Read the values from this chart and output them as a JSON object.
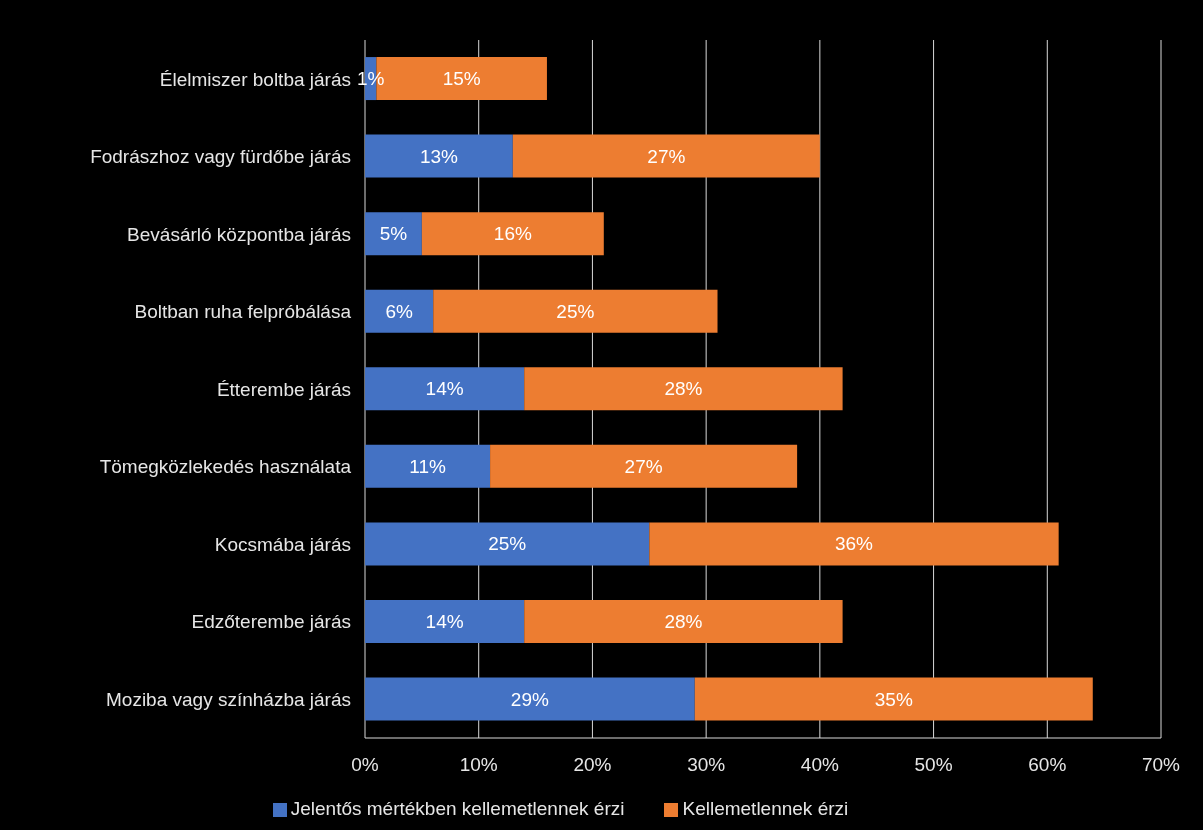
{
  "chart_data": {
    "type": "bar",
    "orientation": "horizontal",
    "stacked": true,
    "categories": [
      "Élelmiszer boltba járás",
      "Fodrászhoz vagy fürdőbe járás",
      "Bevásárló központba járás",
      "Boltban ruha felpróbálása",
      "Étterembe járás",
      "Tömegközlekedés használata",
      "Kocsmába járás",
      "Edzőterembe járás",
      "Moziba vagy színházba járás"
    ],
    "series": [
      {
        "name": "Jelentős mértékben kellemetlennek érzi",
        "color": "#4472c4",
        "values": [
          1,
          13,
          5,
          6,
          14,
          11,
          25,
          14,
          29
        ],
        "value_labels": [
          "1%",
          "13%",
          "5%",
          "6%",
          "14%",
          "11%",
          "25%",
          "14%",
          "29%"
        ]
      },
      {
        "name": "Kellemetlennek érzi",
        "color": "#ed7d31",
        "values": [
          15,
          27,
          16,
          25,
          28,
          27,
          36,
          28,
          35
        ],
        "value_labels": [
          "15%",
          "27%",
          "16%",
          "25%",
          "28%",
          "27%",
          "36%",
          "28%",
          "35%"
        ]
      }
    ],
    "xlim": [
      0,
      70
    ],
    "xticks": [
      {
        "value": 0,
        "label": "0%"
      },
      {
        "value": 10,
        "label": "10%"
      },
      {
        "value": 20,
        "label": "20%"
      },
      {
        "value": 30,
        "label": "30%"
      },
      {
        "value": 40,
        "label": "40%"
      },
      {
        "value": 50,
        "label": "50%"
      },
      {
        "value": 60,
        "label": "60%"
      },
      {
        "value": 70,
        "label": "70%"
      }
    ],
    "grid": "x",
    "legend": "bottom"
  }
}
